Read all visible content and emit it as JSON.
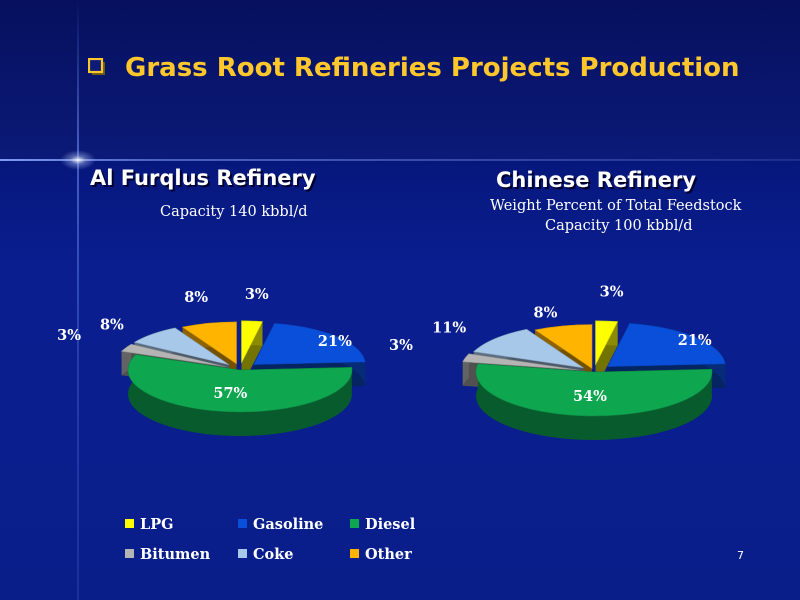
{
  "slide": {
    "title": "Grass Root Refineries Projects Production",
    "page_number": "7"
  },
  "colors": {
    "title": "#ffc72c",
    "LPG": "#ffff00",
    "Gasoline": "#0a4fd9",
    "Diesel": "#0fa650",
    "Bitumen": "#b4b4b4",
    "Coke": "#a8c8ea",
    "Other": "#ffb400"
  },
  "chart_data": [
    {
      "type": "pie",
      "style": "3d-exploded",
      "title": "Al Furqlus Refinery",
      "subtitle": [
        "Capacity 140 kbbl/d"
      ],
      "categories": [
        "LPG",
        "Gasoline",
        "Diesel",
        "Bitumen",
        "Coke",
        "Other"
      ],
      "values": [
        3,
        21,
        57,
        3,
        8,
        8
      ],
      "labels": [
        "3%",
        "21%",
        "57%",
        "3%",
        "8%",
        "8%"
      ]
    },
    {
      "type": "pie",
      "style": "3d-exploded",
      "title": "Chinese Refinery",
      "subtitle": [
        "Weight Percent of Total Feedstock",
        "Capacity 100 kbbl/d"
      ],
      "categories": [
        "LPG",
        "Gasoline",
        "Diesel",
        "Bitumen",
        "Coke",
        "Other"
      ],
      "values": [
        3,
        21,
        54,
        3,
        11,
        8
      ],
      "labels": [
        "3%",
        "21%",
        "54%",
        "3%",
        "11%",
        "8%"
      ]
    }
  ],
  "legend": {
    "placement": "bottom",
    "items": [
      "LPG",
      "Gasoline",
      "Diesel",
      "Bitumen",
      "Coke",
      "Other"
    ]
  }
}
